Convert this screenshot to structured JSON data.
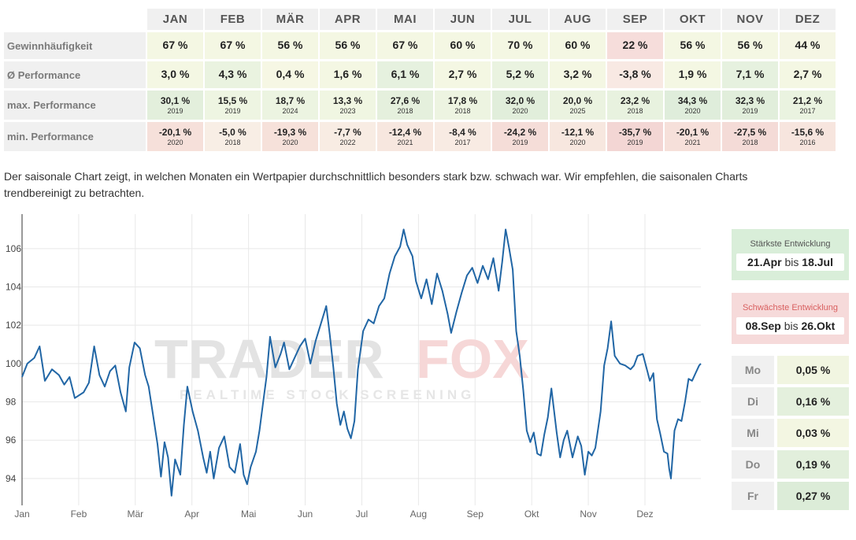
{
  "stats_table": {
    "months": [
      "JAN",
      "FEB",
      "MÄR",
      "APR",
      "MAI",
      "JUN",
      "JUL",
      "AUG",
      "SEP",
      "OKT",
      "NOV",
      "DEZ"
    ],
    "rows": {
      "win": {
        "label": "Gewinnhäufigkeit",
        "values": [
          "67 %",
          "67 %",
          "56 %",
          "56 %",
          "67 %",
          "60 %",
          "70 %",
          "60 %",
          "22 %",
          "56 %",
          "56 %",
          "44 %"
        ],
        "colors": [
          "#f4f7e3",
          "#f4f7e3",
          "#f4f7e3",
          "#f4f7e3",
          "#f4f7e3",
          "#f4f7e3",
          "#f4f7e3",
          "#f4f7e3",
          "#f6dddb",
          "#f4f7e3",
          "#f4f7e3",
          "#f5f6e4"
        ]
      },
      "avg": {
        "label": "Ø Performance",
        "values": [
          "3,0 %",
          "4,3 %",
          "0,4 %",
          "1,6 %",
          "6,1 %",
          "2,7 %",
          "5,2 %",
          "3,2 %",
          "-3,8 %",
          "1,9 %",
          "7,1 %",
          "2,7 %"
        ],
        "colors": [
          "#f4f7e3",
          "#eaf3e0",
          "#f6f7e4",
          "#f4f7e3",
          "#e6f1df",
          "#f4f7e3",
          "#eaf3e0",
          "#f4f7e3",
          "#f8e9e3",
          "#f4f7e3",
          "#e6f1df",
          "#f4f7e3"
        ]
      },
      "max": {
        "label": "max. Performance",
        "values": [
          "30,1 %",
          "15,5 %",
          "18,7 %",
          "13,3 %",
          "27,6 %",
          "17,8 %",
          "32,0 %",
          "20,0 %",
          "23,2 %",
          "34,3 %",
          "32,3 %",
          "21,2 %"
        ],
        "years": [
          "2019",
          "2019",
          "2024",
          "2023",
          "2018",
          "2018",
          "2020",
          "2025",
          "2018",
          "2020",
          "2019",
          "2017"
        ],
        "colors": [
          "#e3efdc",
          "#eef5e2",
          "#ecf4e1",
          "#f0f6e2",
          "#e5f0dd",
          "#edf4e1",
          "#e1eedb",
          "#ebf3e0",
          "#e8f2df",
          "#dfeddb",
          "#e1eedb",
          "#eaf3e0"
        ]
      },
      "min": {
        "label": "min. Performance",
        "values": [
          "-20,1 %",
          "-5,0 %",
          "-19,3 %",
          "-7,7 %",
          "-12,4 %",
          "-8,4 %",
          "-24,2 %",
          "-12,1 %",
          "-35,7 %",
          "-20,1 %",
          "-27,5 %",
          "-15,6 %"
        ],
        "years": [
          "2020",
          "2018",
          "2020",
          "2022",
          "2021",
          "2017",
          "2019",
          "2020",
          "2019",
          "2021",
          "2018",
          "2016"
        ],
        "colors": [
          "#f6e0da",
          "#f8eee5",
          "#f6e1da",
          "#f8ece3",
          "#f7e7df",
          "#f8ebe3",
          "#f5ddd8",
          "#f7e7df",
          "#f3d6d4",
          "#f6e0da",
          "#f4dbd7",
          "#f7e5de"
        ]
      }
    }
  },
  "description": "Der saisonale Chart zeigt, in welchen Monaten ein Wertpapier durchschnittlich besonders stark bzw. schwach war. Wir empfehlen, die saisonalen Charts trendbereinigt zu betrachten.",
  "watermark": {
    "part1": "TRADER",
    "part2": "FOX",
    "tagline": "REALTIME STOCK SCREENING"
  },
  "colors": {
    "line": "#2166a5",
    "grid": "#e8e8e8",
    "best_bg": "#d9eed9",
    "worst_bg": "#f6dada"
  },
  "chart_data": {
    "type": "line",
    "x_ticks": [
      "Jan",
      "Feb",
      "Mär",
      "Apr",
      "Mai",
      "Jun",
      "Jul",
      "Aug",
      "Sep",
      "Okt",
      "Nov",
      "Dez"
    ],
    "y_ticks": [
      94,
      96,
      98,
      100,
      102,
      104,
      106
    ],
    "ylim": [
      92.6,
      107.8
    ],
    "grid": true,
    "series": [
      {
        "x_unit": "day of year",
        "points": [
          [
            1,
            99.3
          ],
          [
            4,
            100.0
          ],
          [
            8,
            100.3
          ],
          [
            11,
            100.9
          ],
          [
            14,
            99.1
          ],
          [
            18,
            99.7
          ],
          [
            22,
            99.4
          ],
          [
            25,
            98.9
          ],
          [
            28,
            99.3
          ],
          [
            31,
            98.2
          ],
          [
            36,
            98.5
          ],
          [
            39,
            99.0
          ],
          [
            42,
            100.9
          ],
          [
            45,
            99.4
          ],
          [
            48,
            98.8
          ],
          [
            51,
            99.6
          ],
          [
            54,
            99.9
          ],
          [
            57,
            98.5
          ],
          [
            60,
            97.5
          ],
          [
            62,
            99.8
          ],
          [
            65,
            101.1
          ],
          [
            68,
            100.8
          ],
          [
            71,
            99.4
          ],
          [
            73,
            98.8
          ],
          [
            75,
            97.6
          ],
          [
            78,
            95.8
          ],
          [
            80,
            94.1
          ],
          [
            82,
            95.9
          ],
          [
            84,
            95.1
          ],
          [
            86,
            93.1
          ],
          [
            88,
            95.0
          ],
          [
            91,
            94.2
          ],
          [
            93,
            96.8
          ],
          [
            95,
            98.8
          ],
          [
            98,
            97.5
          ],
          [
            101,
            96.5
          ],
          [
            104,
            95.1
          ],
          [
            106,
            94.3
          ],
          [
            108,
            95.4
          ],
          [
            110,
            94.0
          ],
          [
            113,
            95.6
          ],
          [
            116,
            96.2
          ],
          [
            119,
            94.6
          ],
          [
            122,
            94.3
          ],
          [
            125,
            95.8
          ],
          [
            127,
            94.2
          ],
          [
            129,
            93.7
          ],
          [
            131,
            94.6
          ],
          [
            134,
            95.4
          ],
          [
            136,
            96.5
          ],
          [
            138,
            97.9
          ],
          [
            140,
            99.3
          ],
          [
            142,
            101.4
          ],
          [
            145,
            99.8
          ],
          [
            148,
            100.5
          ],
          [
            150,
            101.1
          ],
          [
            153,
            99.7
          ],
          [
            156,
            100.3
          ],
          [
            159,
            100.9
          ],
          [
            162,
            101.3
          ],
          [
            165,
            100.0
          ],
          [
            168,
            101.2
          ],
          [
            171,
            102.1
          ],
          [
            174,
            103.0
          ],
          [
            176,
            101.5
          ],
          [
            178,
            99.8
          ],
          [
            180,
            97.9
          ],
          [
            182,
            96.8
          ],
          [
            184,
            97.5
          ],
          [
            186,
            96.6
          ],
          [
            188,
            96.1
          ],
          [
            190,
            97.0
          ],
          [
            192,
            99.7
          ],
          [
            195,
            101.7
          ],
          [
            198,
            102.3
          ],
          [
            201,
            102.1
          ],
          [
            204,
            103.0
          ],
          [
            207,
            103.4
          ],
          [
            210,
            104.7
          ],
          [
            213,
            105.6
          ],
          [
            216,
            106.1
          ],
          [
            218,
            107.0
          ],
          [
            220,
            106.2
          ],
          [
            223,
            105.6
          ],
          [
            225,
            104.3
          ],
          [
            228,
            103.4
          ],
          [
            231,
            104.4
          ],
          [
            234,
            103.1
          ],
          [
            237,
            104.7
          ],
          [
            240,
            103.8
          ],
          [
            243,
            102.6
          ],
          [
            245,
            101.6
          ],
          [
            248,
            102.7
          ],
          [
            251,
            103.7
          ],
          [
            254,
            104.6
          ],
          [
            257,
            105.0
          ],
          [
            260,
            104.2
          ],
          [
            263,
            105.1
          ],
          [
            266,
            104.4
          ],
          [
            269,
            105.5
          ],
          [
            272,
            103.8
          ],
          [
            274,
            105.3
          ],
          [
            276,
            107.0
          ],
          [
            278,
            106.0
          ],
          [
            280,
            104.9
          ],
          [
            282,
            101.7
          ],
          [
            284,
            100.4
          ],
          [
            286,
            98.6
          ],
          [
            288,
            96.5
          ],
          [
            290,
            95.9
          ],
          [
            292,
            96.4
          ],
          [
            294,
            95.3
          ],
          [
            296,
            95.2
          ],
          [
            298,
            96.3
          ],
          [
            300,
            97.2
          ],
          [
            302,
            98.7
          ],
          [
            305,
            96.4
          ],
          [
            307,
            95.1
          ],
          [
            309,
            96.0
          ],
          [
            311,
            96.5
          ],
          [
            314,
            95.1
          ],
          [
            317,
            96.2
          ],
          [
            319,
            95.7
          ],
          [
            321,
            94.2
          ],
          [
            323,
            95.4
          ],
          [
            325,
            95.2
          ],
          [
            327,
            95.6
          ],
          [
            330,
            97.5
          ],
          [
            332,
            99.9
          ],
          [
            334,
            100.8
          ],
          [
            336,
            102.2
          ],
          [
            338,
            100.4
          ],
          [
            341,
            100.0
          ],
          [
            344,
            99.9
          ],
          [
            347,
            99.7
          ],
          [
            349,
            99.9
          ],
          [
            351,
            100.4
          ],
          [
            354,
            100.5
          ],
          [
            356,
            99.8
          ],
          [
            358,
            99.1
          ],
          [
            360,
            99.5
          ],
          [
            362,
            97.1
          ],
          [
            364,
            96.3
          ],
          [
            366,
            95.4
          ],
          [
            368,
            95.3
          ],
          [
            369,
            94.5
          ],
          [
            370,
            94.0
          ],
          [
            372,
            96.5
          ],
          [
            374,
            97.1
          ],
          [
            376,
            97.0
          ],
          [
            378,
            98.0
          ],
          [
            380,
            99.2
          ],
          [
            382,
            99.1
          ],
          [
            384,
            99.5
          ],
          [
            386,
            99.9
          ],
          [
            387,
            100.0
          ]
        ]
      }
    ]
  },
  "best_box": {
    "label": "Stärkste Entwicklung",
    "from": "21.Apr",
    "sep": "bis",
    "to": "18.Jul"
  },
  "worst_box": {
    "label": "Schwächste Entwicklung",
    "from": "08.Sep",
    "sep": "bis",
    "to": "26.Okt"
  },
  "weekdays": [
    {
      "day": "Mo",
      "value": "0,05 %",
      "color": "#f1f5e1"
    },
    {
      "day": "Di",
      "value": "0,16 %",
      "color": "#e4f0dd"
    },
    {
      "day": "Mi",
      "value": "0,03 %",
      "color": "#f3f6e2"
    },
    {
      "day": "Do",
      "value": "0,19 %",
      "color": "#e2efdc"
    },
    {
      "day": "Fr",
      "value": "0,27 %",
      "color": "#dcecd8"
    }
  ]
}
